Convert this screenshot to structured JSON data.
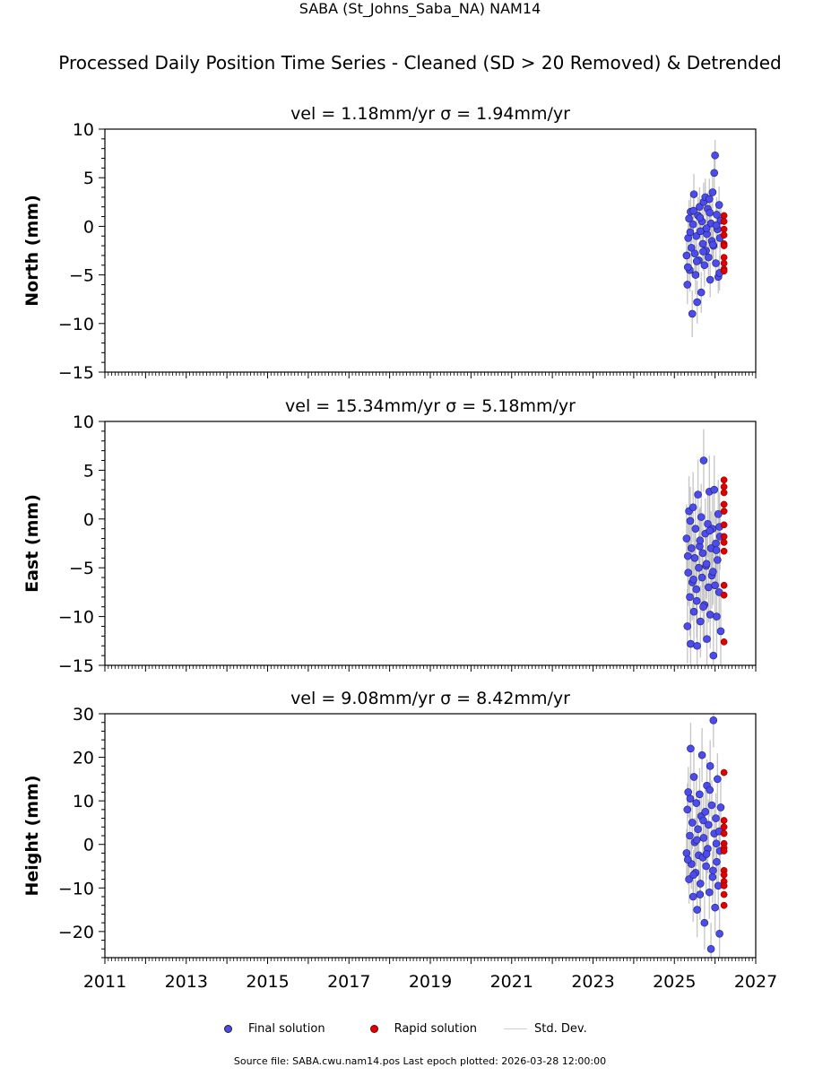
{
  "figure": {
    "title": "SABA (St_Johns_Saba_NA) NAM14",
    "subtitle": "Processed Daily Position Time Series - Cleaned (SD > 20 Removed) & Detrended",
    "source_note": "Source file: SABA.cwu.nam14.pos  Last epoch plotted: 2026-03-28 12:00:00"
  },
  "legend": {
    "final": "Final solution",
    "rapid": "Rapid solution",
    "sd": "Std. Dev."
  },
  "colors": {
    "final": "#4b4bf0",
    "rapid": "#e00000",
    "sd": "#b0b0b0"
  },
  "chart_data": [
    {
      "type": "scatter",
      "title": "vel = 1.18mm/yr   σ = 1.94mm/yr",
      "ylabel": "North (mm)",
      "xlim": [
        2011,
        2027
      ],
      "ylim": [
        -15,
        10
      ],
      "y_ticks": [
        -15,
        -10,
        -5,
        0,
        5,
        10
      ],
      "x_ticks": [
        2011,
        2013,
        2015,
        2017,
        2019,
        2021,
        2023,
        2025,
        2027
      ],
      "grid": false,
      "final_solution": {
        "x": [
          2025.3,
          2025.32,
          2025.34,
          2025.36,
          2025.38,
          2025.4,
          2025.42,
          2025.44,
          2025.46,
          2025.48,
          2025.5,
          2025.52,
          2025.54,
          2025.56,
          2025.58,
          2025.6,
          2025.62,
          2025.64,
          2025.66,
          2025.68,
          2025.7,
          2025.72,
          2025.74,
          2025.76,
          2025.78,
          2025.8,
          2025.82,
          2025.84,
          2025.86,
          2025.88,
          2025.9,
          2025.92,
          2025.94,
          2025.96,
          2025.98,
          2026.0,
          2026.02,
          2026.04,
          2026.06,
          2026.08,
          2026.1,
          2026.12,
          2026.14,
          2025.33,
          2025.39,
          2025.47,
          2025.55,
          2025.63,
          2025.71,
          2025.79,
          2025.87,
          2025.95,
          2026.03,
          2026.11
        ],
        "y": [
          -3.0,
          -6.0,
          -1.2,
          0.8,
          -4.5,
          1.5,
          -2.2,
          -9.0,
          0.2,
          3.3,
          -2.8,
          -5.0,
          -1.0,
          -7.8,
          1.1,
          -3.5,
          2.0,
          -0.5,
          -6.8,
          0.5,
          -1.8,
          2.5,
          -4.0,
          3.0,
          -2.5,
          -0.8,
          1.8,
          -3.2,
          2.8,
          -5.5,
          0.3,
          -1.5,
          3.5,
          -2.0,
          5.5,
          7.3,
          -3.8,
          1.2,
          -0.3,
          -5.2,
          2.2,
          -1.2,
          0.6,
          -4.2,
          -0.6,
          1.6,
          -3.6,
          0.9,
          -2.6,
          -0.2,
          1.4,
          -1.9,
          0.1,
          -4.8
        ],
        "sd": [
          1.8,
          2.0,
          1.7,
          1.9,
          2.2,
          1.8,
          2.0,
          2.4,
          1.9,
          2.1,
          1.8,
          2.0,
          1.7,
          2.2,
          1.9,
          1.8,
          2.0,
          1.7,
          2.1,
          1.9,
          1.8,
          2.0,
          2.2,
          1.9,
          1.8,
          2.0,
          1.7,
          1.9,
          2.1,
          1.8,
          2.0,
          1.7,
          1.9,
          2.0,
          1.8,
          1.6,
          1.9,
          1.8,
          2.0,
          1.7,
          1.9,
          1.8,
          2.0,
          1.9,
          1.8,
          2.0,
          1.7,
          1.9,
          2.0,
          1.8,
          1.9,
          1.7,
          2.0,
          1.8
        ]
      },
      "rapid_solution": {
        "x": [
          2026.22,
          2026.22,
          2026.22,
          2026.22,
          2026.22,
          2026.22,
          2026.22,
          2026.22,
          2026.22,
          2026.22
        ],
        "y": [
          1.1,
          0.5,
          -0.3,
          -0.9,
          -1.8,
          -2.0,
          -3.2,
          -3.8,
          -4.4,
          -4.6
        ]
      }
    },
    {
      "type": "scatter",
      "title": "vel = 15.34mm/yr   σ = 5.18mm/yr",
      "ylabel": "East (mm)",
      "xlim": [
        2011,
        2027
      ],
      "ylim": [
        -15,
        10
      ],
      "y_ticks": [
        -15,
        -10,
        -5,
        0,
        5,
        10
      ],
      "x_ticks": [
        2011,
        2013,
        2015,
        2017,
        2019,
        2021,
        2023,
        2025,
        2027
      ],
      "grid": false,
      "final_solution": {
        "x": [
          2025.3,
          2025.32,
          2025.34,
          2025.36,
          2025.38,
          2025.4,
          2025.42,
          2025.44,
          2025.46,
          2025.48,
          2025.5,
          2025.52,
          2025.54,
          2025.56,
          2025.58,
          2025.6,
          2025.62,
          2025.64,
          2025.66,
          2025.68,
          2025.7,
          2025.72,
          2025.74,
          2025.76,
          2025.78,
          2025.8,
          2025.82,
          2025.84,
          2025.86,
          2025.88,
          2025.9,
          2025.92,
          2025.94,
          2025.96,
          2025.98,
          2026.0,
          2026.02,
          2026.04,
          2026.06,
          2026.08,
          2026.1,
          2026.12,
          2026.14,
          2025.33,
          2025.39,
          2025.47,
          2025.55,
          2025.63,
          2025.71,
          2025.79,
          2025.87,
          2025.95,
          2026.03,
          2026.11
        ],
        "y": [
          -2.0,
          -11.0,
          -5.5,
          0.8,
          -8.0,
          -12.8,
          -3.0,
          -6.5,
          1.2,
          -9.5,
          -4.0,
          -1.0,
          -7.2,
          -13.0,
          2.5,
          -5.0,
          -2.8,
          -10.5,
          0.2,
          -6.0,
          -3.5,
          6.0,
          -8.8,
          -1.5,
          -4.8,
          -12.3,
          -0.5,
          -7.0,
          2.8,
          -9.8,
          -3.0,
          -5.8,
          -1.0,
          -14.0,
          3.0,
          -6.8,
          -2.5,
          -10.0,
          -4.2,
          0.5,
          -7.5,
          -1.8,
          -11.5,
          -3.8,
          -0.2,
          -6.2,
          -8.4,
          -2.2,
          -9.0,
          -4.6,
          -1.2,
          -5.4,
          -3.2,
          -0.8
        ],
        "sd": [
          3.5,
          3.8,
          3.4,
          3.6,
          4.0,
          3.7,
          3.5,
          3.9,
          3.6,
          3.8,
          3.4,
          3.7,
          3.5,
          4.1,
          3.6,
          3.5,
          3.8,
          3.7,
          3.4,
          3.6,
          3.5,
          3.2,
          3.9,
          3.6,
          3.5,
          3.8,
          3.4,
          3.6,
          3.7,
          3.5,
          3.8,
          3.4,
          3.6,
          4.0,
          3.5,
          3.7,
          3.4,
          3.8,
          3.6,
          3.5,
          3.7,
          3.4,
          3.9,
          3.6,
          3.5,
          3.7,
          3.8,
          3.4,
          3.6,
          3.5,
          3.7,
          3.4,
          3.6,
          3.5
        ]
      },
      "rapid_solution": {
        "x": [
          2026.22,
          2026.22,
          2026.22,
          2026.22,
          2026.22,
          2026.22,
          2026.22,
          2026.22,
          2026.22,
          2026.22,
          2026.22,
          2026.22
        ],
        "y": [
          4.0,
          3.3,
          2.7,
          1.5,
          0.8,
          -0.6,
          -1.8,
          -2.4,
          -3.3,
          -6.8,
          -7.8,
          -12.6
        ]
      }
    },
    {
      "type": "scatter",
      "title": "vel = 9.08mm/yr   σ = 8.42mm/yr",
      "ylabel": "Height (mm)",
      "xlim": [
        2011,
        2027
      ],
      "ylim": [
        -26,
        30
      ],
      "y_ticks": [
        -20,
        -10,
        0,
        10,
        20,
        30
      ],
      "x_ticks": [
        2011,
        2013,
        2015,
        2017,
        2019,
        2021,
        2023,
        2025,
        2027
      ],
      "x_tick_labels": [
        "2011",
        "2013",
        "2015",
        "2017",
        "2019",
        "2021",
        "2023",
        "2025",
        "2027"
      ],
      "grid": false,
      "final_solution": {
        "x": [
          2025.3,
          2025.32,
          2025.34,
          2025.36,
          2025.38,
          2025.4,
          2025.42,
          2025.44,
          2025.46,
          2025.48,
          2025.5,
          2025.52,
          2025.54,
          2025.56,
          2025.58,
          2025.6,
          2025.62,
          2025.64,
          2025.66,
          2025.68,
          2025.7,
          2025.72,
          2025.74,
          2025.76,
          2025.78,
          2025.8,
          2025.82,
          2025.84,
          2025.86,
          2025.88,
          2025.9,
          2025.92,
          2025.94,
          2025.96,
          2025.98,
          2026.0,
          2026.02,
          2026.04,
          2026.06,
          2026.08,
          2026.1,
          2026.12,
          2026.14,
          2025.33,
          2025.39,
          2025.47,
          2025.55,
          2025.63,
          2025.71,
          2025.79,
          2025.87,
          2025.95,
          2026.03,
          2026.11
        ],
        "y": [
          -2.0,
          8.0,
          12.0,
          -8.0,
          2.0,
          22.0,
          -4.5,
          5.0,
          -12.0,
          15.5,
          0.5,
          -6.5,
          9.5,
          -15.0,
          3.5,
          -2.5,
          11.5,
          -9.0,
          6.5,
          20.5,
          -3.0,
          1.5,
          -18.0,
          7.5,
          -5.0,
          13.5,
          -1.0,
          4.5,
          -11.0,
          18.0,
          -24.0,
          9.0,
          -7.5,
          28.5,
          2.5,
          -14.5,
          6.0,
          -4.0,
          15.0,
          -9.5,
          3.0,
          -1.5,
          8.5,
          -3.5,
          10.5,
          -7.0,
          1.0,
          -11.5,
          5.5,
          -2.2,
          12.5,
          -6.0,
          0.2,
          -20.5
        ],
        "sd": [
          5.5,
          6.0,
          5.8,
          5.6,
          6.2,
          5.9,
          5.7,
          6.1,
          5.8,
          6.0,
          5.6,
          5.9,
          5.7,
          6.3,
          5.8,
          5.6,
          6.0,
          5.9,
          5.7,
          6.2,
          5.8,
          5.6,
          6.1,
          5.9,
          5.7,
          6.0,
          5.6,
          5.8,
          6.1,
          5.9,
          6.0,
          5.7,
          5.9,
          6.2,
          5.6,
          5.8,
          5.7,
          6.0,
          5.9,
          5.6,
          5.8,
          5.7,
          6.0,
          5.8,
          5.9,
          5.7,
          6.0,
          5.8,
          5.6,
          5.9,
          6.1,
          5.7,
          5.8,
          6.0
        ]
      },
      "rapid_solution": {
        "x": [
          2026.22,
          2026.22,
          2026.22,
          2026.22,
          2026.22,
          2026.22,
          2026.22,
          2026.22,
          2026.22,
          2026.22,
          2026.22,
          2026.22,
          2026.22
        ],
        "y": [
          16.5,
          5.5,
          4.0,
          2.5,
          0.2,
          -0.8,
          -1.5,
          -6.0,
          -7.0,
          -8.5,
          -9.5,
          -11.5,
          -14.0
        ]
      }
    }
  ]
}
